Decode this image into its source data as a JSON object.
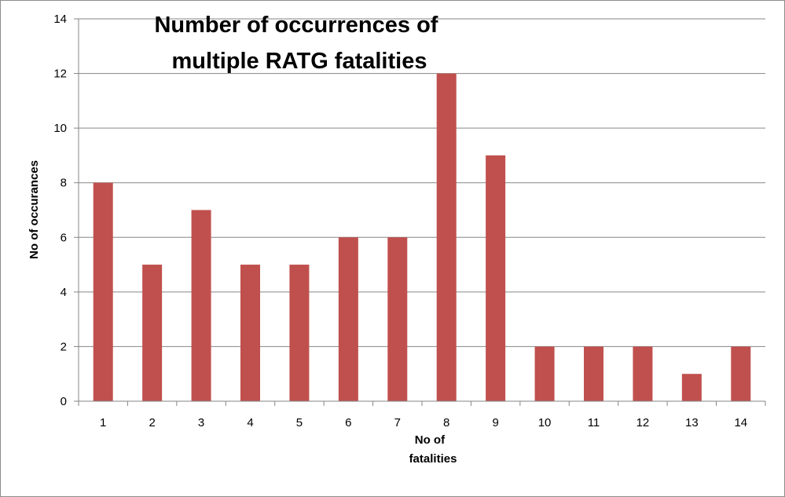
{
  "chart_data": {
    "type": "bar",
    "title": "Number of occurrences of multiple RATG fatalities",
    "title_lines": [
      "Number of occurrences of",
      "multiple RATG fatalities"
    ],
    "xlabel": "No of fatalities",
    "xlabel_lines": [
      "No of",
      "fatalities"
    ],
    "ylabel": "No of occurances",
    "categories": [
      "1",
      "2",
      "3",
      "4",
      "5",
      "6",
      "7",
      "8",
      "9",
      "10",
      "11",
      "12",
      "13",
      "14"
    ],
    "values": [
      8,
      5,
      7,
      5,
      5,
      6,
      6,
      12,
      9,
      2,
      2,
      2,
      1,
      2
    ],
    "ylim": [
      0,
      14
    ],
    "yticks": [
      "0",
      "2",
      "4",
      "6",
      "8",
      "10",
      "12",
      "14"
    ],
    "grid": true,
    "legend": "none",
    "bar_color": "#c0504d",
    "grid_color": "#868686"
  }
}
